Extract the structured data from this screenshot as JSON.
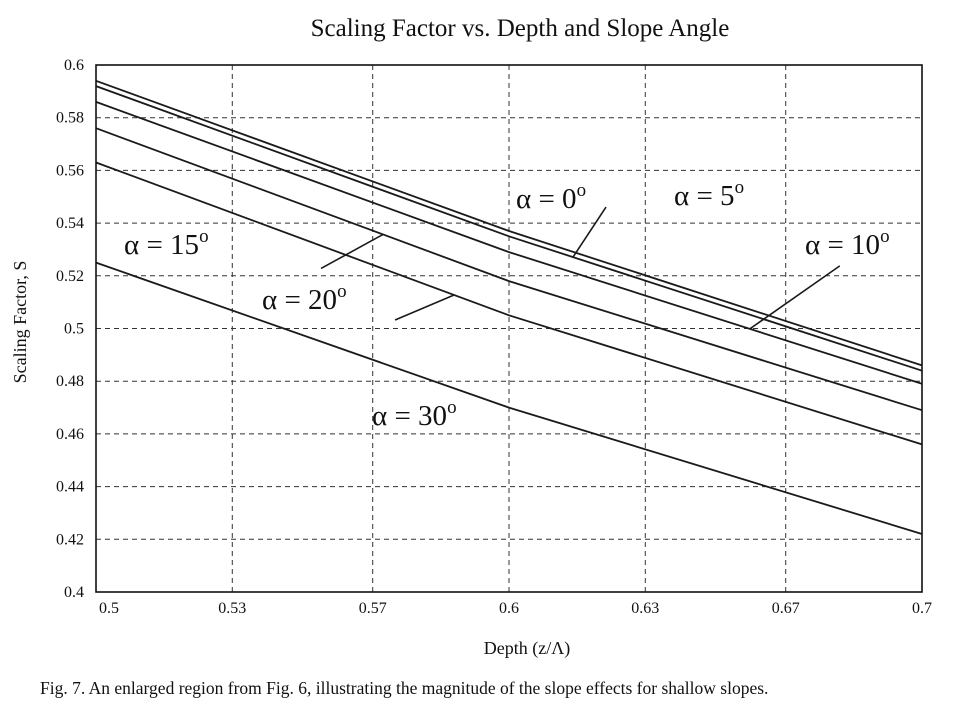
{
  "chart_data": {
    "type": "line",
    "title": "Scaling Factor vs. Depth and Slope Angle",
    "xlabel": "Depth  (z/Λ)",
    "ylabel": "Scaling Factor, S",
    "caption": "Fig. 7. An enlarged region from Fig. 6, illustrating the magnitude of the slope effects for shallow slopes.",
    "xlim": [
      0.5,
      0.7
    ],
    "ylim": [
      0.4,
      0.6
    ],
    "x_ticks": [
      0.5,
      0.533,
      0.567,
      0.6,
      0.633,
      0.667,
      0.7
    ],
    "x_tick_labels": [
      "0.5",
      "0.53",
      "0.57",
      "0.6",
      "0.63",
      "0.67",
      "0.7"
    ],
    "y_ticks": [
      0.4,
      0.42,
      0.44,
      0.46,
      0.48,
      0.5,
      0.52,
      0.54,
      0.56,
      0.58,
      0.6
    ],
    "y_tick_labels": [
      "0.4",
      "0.42",
      "0.44",
      "0.46",
      "0.48",
      "0.5",
      "0.52",
      "0.54",
      "0.56",
      "0.58",
      "0.6"
    ],
    "grid": true,
    "line_color": "#1a1a1a",
    "grid_color": "#333333",
    "series": [
      {
        "alpha": "0",
        "x": [
          0.5,
          0.6,
          0.7
        ],
        "y": [
          0.594,
          0.537,
          0.486
        ]
      },
      {
        "alpha": "5",
        "x": [
          0.5,
          0.6,
          0.7
        ],
        "y": [
          0.592,
          0.535,
          0.484
        ]
      },
      {
        "alpha": "10",
        "x": [
          0.5,
          0.6,
          0.7
        ],
        "y": [
          0.586,
          0.529,
          0.479
        ]
      },
      {
        "alpha": "15",
        "x": [
          0.5,
          0.6,
          0.7
        ],
        "y": [
          0.576,
          0.518,
          0.469
        ]
      },
      {
        "alpha": "20",
        "x": [
          0.5,
          0.6,
          0.7
        ],
        "y": [
          0.563,
          0.505,
          0.456
        ]
      },
      {
        "alpha": "30",
        "x": [
          0.5,
          0.6,
          0.7
        ],
        "y": [
          0.525,
          0.47,
          0.422
        ]
      }
    ],
    "annotations": [
      {
        "symbol": "α",
        "text": " = 0",
        "sup": "o"
      },
      {
        "symbol": "α",
        "text": " = 5",
        "sup": "o"
      },
      {
        "symbol": "α",
        "text": " = 10",
        "sup": "o"
      },
      {
        "symbol": "α",
        "text": " = 15",
        "sup": "o"
      },
      {
        "symbol": "α",
        "text": " = 20",
        "sup": "o"
      },
      {
        "symbol": "α",
        "text": " = 30",
        "sup": "o"
      }
    ]
  }
}
